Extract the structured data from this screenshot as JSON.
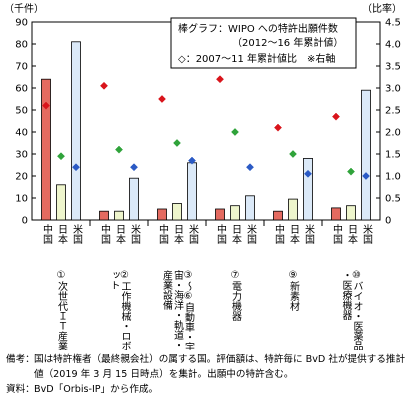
{
  "chart_data": {
    "type": "bar",
    "y_left_unit": "（千件）",
    "y_right_unit": "（比率）",
    "ylim_left": [
      0,
      90
    ],
    "ylim_right": [
      0,
      4.5
    ],
    "yticks_left": [
      "0",
      "10",
      "20",
      "30",
      "40",
      "50",
      "60",
      "70",
      "80",
      "90"
    ],
    "yticks_right": [
      "0",
      "0.5",
      "1.0",
      "1.5",
      "2.0",
      "2.5",
      "3.0",
      "3.5",
      "4.0",
      "4.5"
    ],
    "legend_line1": "棒グラフ：WIPO への特許出願件数",
    "legend_line2": "（2012～16 年累計値）",
    "legend_line3": "◇：2007～11 年累計値比　※右軸",
    "series_names": [
      "中国",
      "日本",
      "米国"
    ],
    "colors": {
      "china": "#e46a60",
      "japan": "#eef5cc",
      "us": "#dbe9f8",
      "china_marker": "#d9141b",
      "japan_marker": "#2fa33a",
      "us_marker": "#2b5ac5"
    },
    "groups": [
      {
        "name": "①次世代ＩＴ産業",
        "bars": [
          64,
          16,
          81
        ],
        "ratios": [
          2.6,
          1.45,
          1.2
        ]
      },
      {
        "name": "②工作機械・ロボット",
        "bars": [
          4,
          4,
          19
        ],
        "ratios": [
          3.05,
          1.6,
          1.2
        ]
      },
      {
        "name": "③～⑥ 自動車・宇宙・海洋・軌道・産業設備",
        "bars": [
          5,
          7.5,
          26
        ],
        "ratios": [
          2.75,
          1.75,
          1.35
        ]
      },
      {
        "name": "⑦電力機器",
        "bars": [
          5,
          6.5,
          11
        ],
        "ratios": [
          3.2,
          2.0,
          1.2
        ]
      },
      {
        "name": "⑨新素材",
        "bars": [
          4,
          9.5,
          28
        ],
        "ratios": [
          2.1,
          1.5,
          1.05
        ]
      },
      {
        "name": "⑩バイオ・医薬品・医療機器",
        "bars": [
          5.5,
          6.5,
          59
        ],
        "ratios": [
          2.35,
          1.1,
          1.0
        ]
      }
    ]
  },
  "notes": {
    "label1": "備考：",
    "text1": "国は特許権者（最終親会社）の属する国。評価額は、特許毎に BvD 社が提供する推計値（2019 年 3 月 15 日時点）を集計。出願中の特許含む。",
    "label2": "資料：",
    "text2": "BvD「Orbis-IP」から作成。"
  }
}
